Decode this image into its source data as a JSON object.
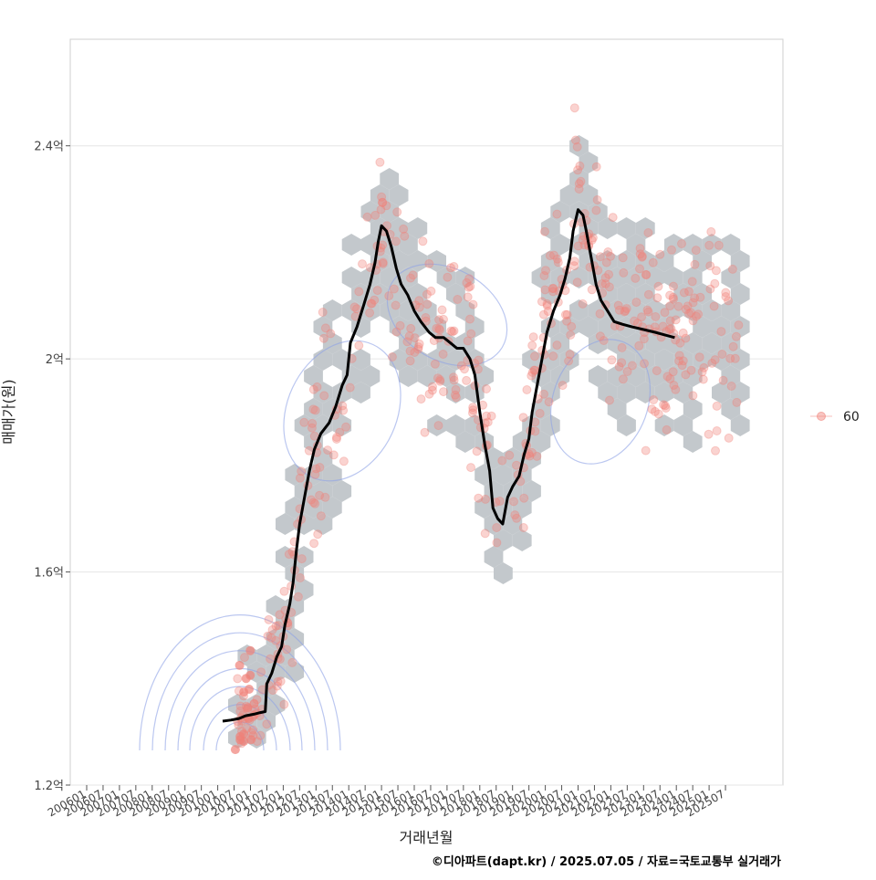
{
  "chart_data": {
    "type": "scatter",
    "title": "",
    "xlabel": "거래년월",
    "ylabel": "매매가(원)",
    "ylim": [
      1.2,
      2.6
    ],
    "y_unit": "억",
    "y_ticks": [
      "1.2억",
      "1.6억",
      "2억",
      "2.4억"
    ],
    "y_tick_values": [
      1.2,
      1.6,
      2.0,
      2.4
    ],
    "x_tick_labels": [
      "200601",
      "200607",
      "200701",
      "200707",
      "200801",
      "200807",
      "200901",
      "200907",
      "201001",
      "201007",
      "201101",
      "201107",
      "201201",
      "201207",
      "201301",
      "201307",
      "201401",
      "201407",
      "201501",
      "201507",
      "201601",
      "201607",
      "201701",
      "201707",
      "201801",
      "201807",
      "201901",
      "201907",
      "202001",
      "202007",
      "202101",
      "202107",
      "202201",
      "202207",
      "202301",
      "202307",
      "202401",
      "202407",
      "202501",
      "202507"
    ],
    "grid": true,
    "legend": {
      "position": "right",
      "entries": [
        "60"
      ]
    },
    "colors": {
      "points": "#f08078",
      "hex": "#c3c8cc",
      "trend": "#000000",
      "contour": "#8ea2e6",
      "grid": "#e6e6e6"
    },
    "trend_line": {
      "name": "moving average",
      "points": [
        [
          8.3,
          1.32
        ],
        [
          8.8,
          1.322
        ],
        [
          9.3,
          1.325
        ],
        [
          9.7,
          1.33
        ],
        [
          10.2,
          1.333
        ],
        [
          10.6,
          1.336
        ],
        [
          10.9,
          1.338
        ],
        [
          11.0,
          1.39
        ],
        [
          11.3,
          1.41
        ],
        [
          11.6,
          1.44
        ],
        [
          11.9,
          1.46
        ],
        [
          12.1,
          1.5
        ],
        [
          12.4,
          1.54
        ],
        [
          12.6,
          1.58
        ],
        [
          12.8,
          1.64
        ],
        [
          13.0,
          1.69
        ],
        [
          13.3,
          1.74
        ],
        [
          13.6,
          1.79
        ],
        [
          13.9,
          1.83
        ],
        [
          14.3,
          1.86
        ],
        [
          14.8,
          1.88
        ],
        [
          15.2,
          1.91
        ],
        [
          15.6,
          1.95
        ],
        [
          15.9,
          1.97
        ],
        [
          16.1,
          2.03
        ],
        [
          16.5,
          2.06
        ],
        [
          16.9,
          2.1
        ],
        [
          17.3,
          2.14
        ],
        [
          17.6,
          2.18
        ],
        [
          17.8,
          2.22
        ],
        [
          18.0,
          2.25
        ],
        [
          18.3,
          2.24
        ],
        [
          18.6,
          2.21
        ],
        [
          18.9,
          2.17
        ],
        [
          19.2,
          2.14
        ],
        [
          19.6,
          2.12
        ],
        [
          20.0,
          2.09
        ],
        [
          20.4,
          2.07
        ],
        [
          20.9,
          2.05
        ],
        [
          21.3,
          2.04
        ],
        [
          21.8,
          2.04
        ],
        [
          22.2,
          2.03
        ],
        [
          22.6,
          2.02
        ],
        [
          23.0,
          2.02
        ],
        [
          23.4,
          2.0
        ],
        [
          23.7,
          1.97
        ],
        [
          24.0,
          1.9
        ],
        [
          24.3,
          1.84
        ],
        [
          24.6,
          1.79
        ],
        [
          24.8,
          1.72
        ],
        [
          25.1,
          1.7
        ],
        [
          25.4,
          1.69
        ],
        [
          25.7,
          1.74
        ],
        [
          26.0,
          1.76
        ],
        [
          26.4,
          1.78
        ],
        [
          26.7,
          1.82
        ],
        [
          27.0,
          1.85
        ],
        [
          27.2,
          1.9
        ],
        [
          27.5,
          1.95
        ],
        [
          27.8,
          2.0
        ],
        [
          28.1,
          2.05
        ],
        [
          28.5,
          2.09
        ],
        [
          28.9,
          2.12
        ],
        [
          29.2,
          2.15
        ],
        [
          29.5,
          2.19
        ],
        [
          29.7,
          2.24
        ],
        [
          30.0,
          2.28
        ],
        [
          30.3,
          2.27
        ],
        [
          30.5,
          2.24
        ],
        [
          30.8,
          2.19
        ],
        [
          31.1,
          2.14
        ],
        [
          31.4,
          2.11
        ],
        [
          31.8,
          2.09
        ],
        [
          32.2,
          2.07
        ],
        [
          32.7,
          2.065
        ],
        [
          33.3,
          2.06
        ],
        [
          34.0,
          2.055
        ],
        [
          34.7,
          2.05
        ],
        [
          35.3,
          2.045
        ],
        [
          35.9,
          2.04
        ]
      ]
    },
    "series": [
      {
        "name": "60",
        "description": "individual transactions (scatter, semi-transparent)"
      }
    ]
  },
  "caption": "©디아파트(dapt.kr) / 2025.07.05 / 자료=국토교통부 실거래가"
}
